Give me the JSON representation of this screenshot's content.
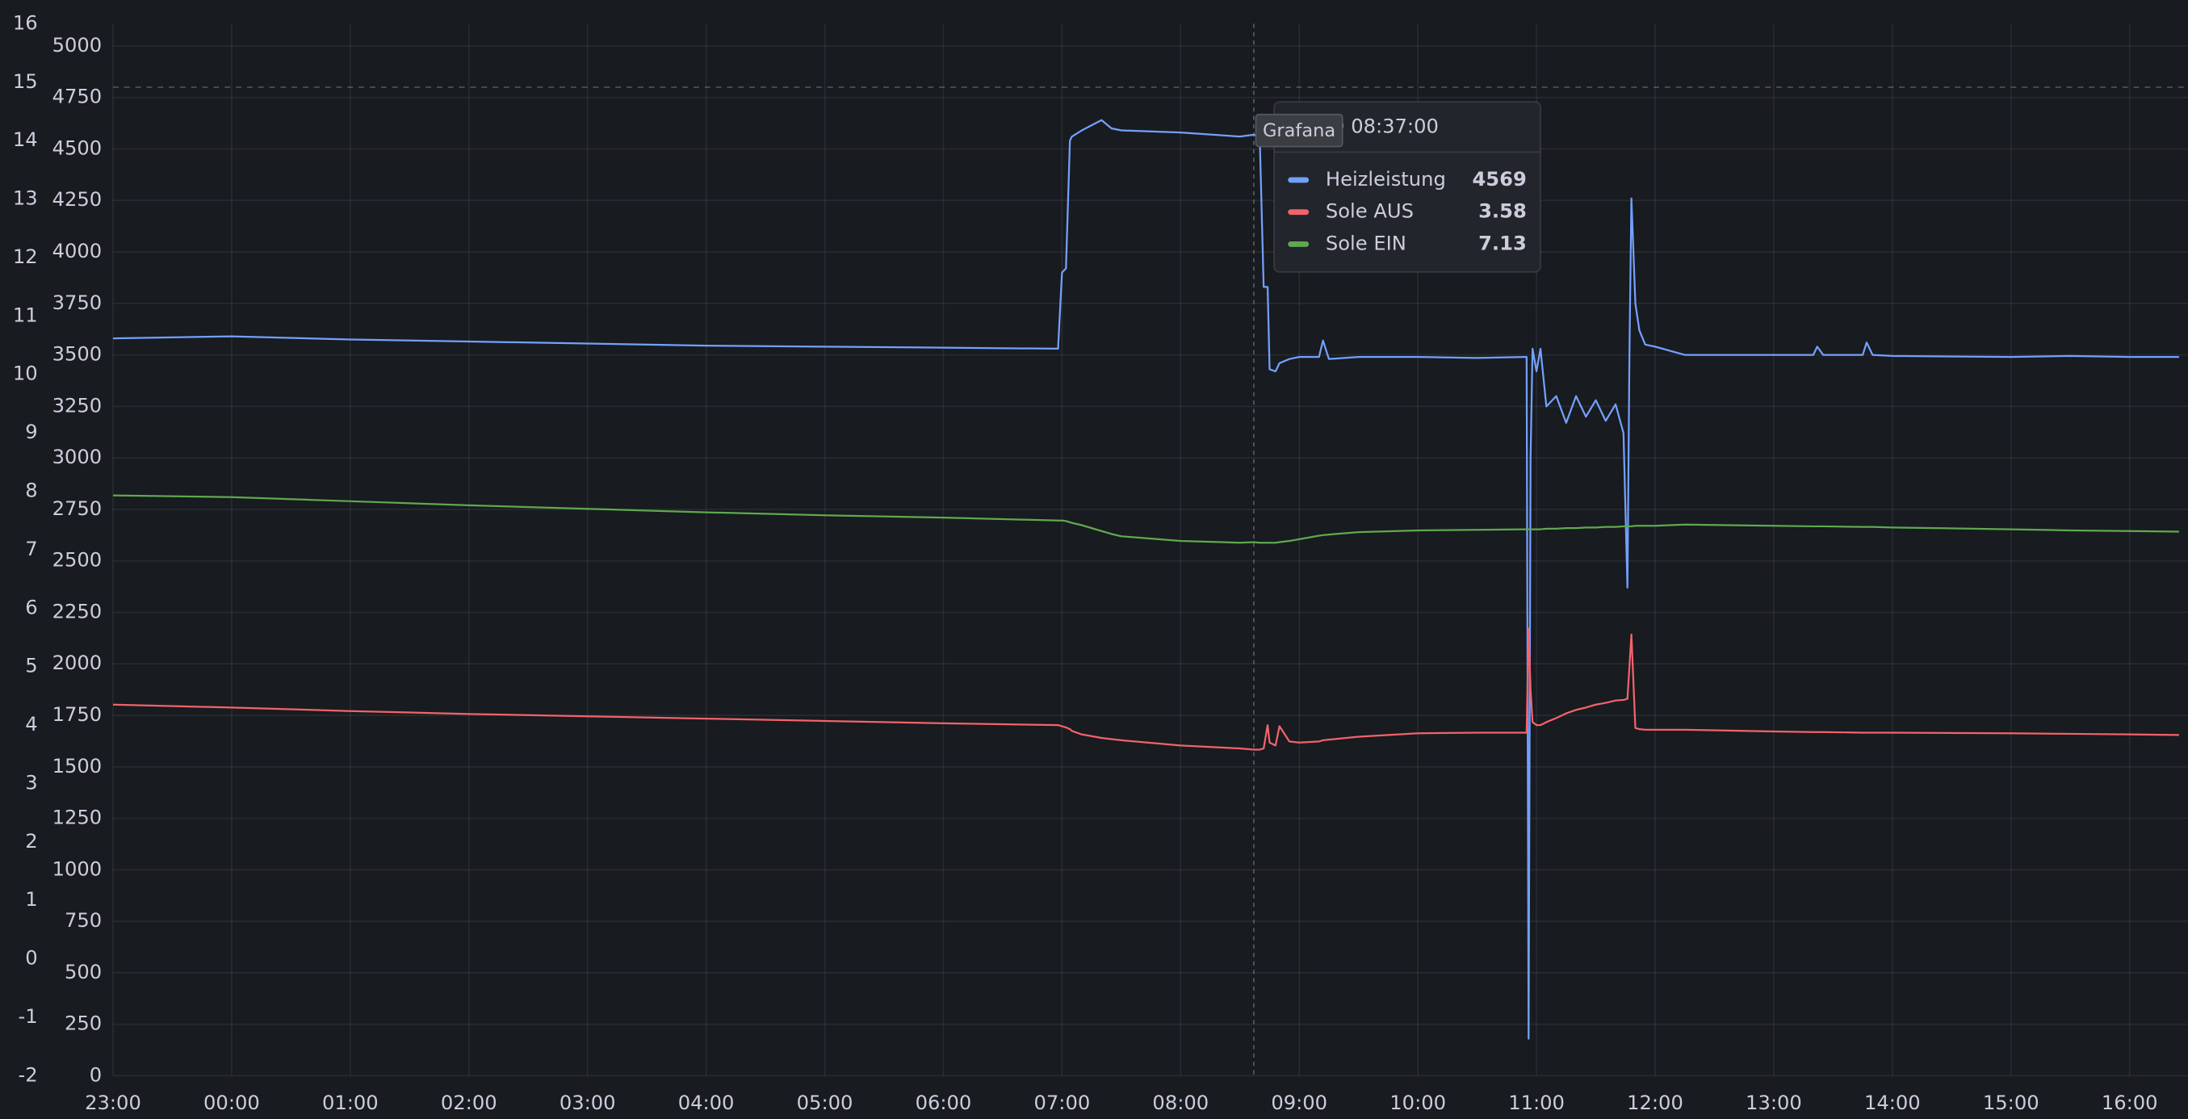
{
  "chart_data": {
    "type": "line",
    "x": [
      "23:00",
      "00:00",
      "01:00",
      "02:00",
      "03:00",
      "04:00",
      "05:00",
      "06:00",
      "06:58",
      "07:00",
      "07:02",
      "07:04",
      "07:05",
      "07:10",
      "07:20",
      "07:25",
      "07:30",
      "08:00",
      "08:30",
      "08:37",
      "08:40",
      "08:42",
      "08:44",
      "08:45",
      "08:48",
      "08:50",
      "08:55",
      "09:00",
      "09:10",
      "09:12",
      "09:15",
      "09:30",
      "10:00",
      "10:30",
      "10:54",
      "10:55",
      "10:56",
      "10:57",
      "10:58",
      "11:00",
      "11:02",
      "11:05",
      "11:10",
      "11:15",
      "11:20",
      "11:25",
      "11:30",
      "11:35",
      "11:40",
      "11:44",
      "11:46",
      "11:47",
      "11:48",
      "11:50",
      "11:52",
      "11:55",
      "12:00",
      "12:15",
      "13:00",
      "13:20",
      "13:22",
      "13:25",
      "13:45",
      "13:47",
      "13:50",
      "14:00",
      "15:00",
      "15:30",
      "16:00",
      "16:25"
    ],
    "series": [
      {
        "name": "Heizleistung",
        "color": "#73a0ff",
        "axis": "y2",
        "values": [
          3580,
          3590,
          3575,
          3565,
          3555,
          3545,
          3540,
          3535,
          3530,
          3900,
          3920,
          4540,
          4560,
          4590,
          4640,
          4600,
          4590,
          4580,
          4560,
          4569,
          4560,
          3830,
          3830,
          3430,
          3420,
          3460,
          3480,
          3490,
          3490,
          3570,
          3480,
          3490,
          3490,
          3485,
          3490,
          3490,
          180,
          3000,
          3530,
          3420,
          3530,
          3250,
          3300,
          3170,
          3300,
          3200,
          3280,
          3180,
          3260,
          3120,
          2370,
          3500,
          4260,
          3750,
          3620,
          3550,
          3540,
          3500,
          3500,
          3500,
          3540,
          3500,
          3500,
          3560,
          3500,
          3495,
          3490,
          3495,
          3490,
          3490
        ]
      },
      {
        "name": "Sole AUS",
        "color": "#f2636b",
        "values": [
          4.35,
          4.3,
          4.24,
          4.19,
          4.15,
          4.11,
          4.07,
          4.03,
          4.0,
          3.98,
          3.96,
          3.93,
          3.9,
          3.84,
          3.78,
          3.76,
          3.74,
          3.65,
          3.6,
          3.58,
          3.58,
          3.6,
          4.0,
          3.7,
          3.65,
          3.98,
          3.72,
          3.7,
          3.72,
          3.74,
          3.75,
          3.8,
          3.86,
          3.87,
          3.87,
          3.87,
          5.65,
          4.6,
          4.05,
          4.0,
          4.0,
          4.05,
          4.12,
          4.2,
          4.26,
          4.3,
          4.35,
          4.38,
          4.42,
          4.43,
          4.45,
          5.0,
          5.55,
          3.95,
          3.93,
          3.92,
          3.92,
          3.92,
          3.89,
          3.88,
          3.88,
          3.88,
          3.87,
          3.87,
          3.87,
          3.87,
          3.86,
          3.85,
          3.84,
          3.83
        ]
      },
      {
        "name": "Sole EIN",
        "color": "#5ea94f",
        "values": [
          7.93,
          7.9,
          7.83,
          7.76,
          7.7,
          7.64,
          7.59,
          7.55,
          7.5,
          7.5,
          7.49,
          7.47,
          7.46,
          7.42,
          7.32,
          7.27,
          7.23,
          7.15,
          7.12,
          7.13,
          7.12,
          7.12,
          7.12,
          7.12,
          7.12,
          7.13,
          7.15,
          7.18,
          7.24,
          7.25,
          7.26,
          7.3,
          7.33,
          7.34,
          7.35,
          7.35,
          7.35,
          7.35,
          7.35,
          7.35,
          7.35,
          7.36,
          7.36,
          7.37,
          7.37,
          7.38,
          7.38,
          7.39,
          7.39,
          7.4,
          7.4,
          7.4,
          7.4,
          7.41,
          7.41,
          7.41,
          7.41,
          7.43,
          7.41,
          7.4,
          7.4,
          7.4,
          7.39,
          7.39,
          7.39,
          7.38,
          7.35,
          7.33,
          7.32,
          7.31
        ]
      }
    ],
    "xlim": [
      "23:00",
      "16:26"
    ],
    "xticks": [
      "23:00",
      "00:00",
      "01:00",
      "02:00",
      "03:00",
      "04:00",
      "05:00",
      "06:00",
      "07:00",
      "08:00",
      "09:00",
      "10:00",
      "11:00",
      "12:00",
      "13:00",
      "14:00",
      "15:00",
      "16:00"
    ],
    "ylim": [
      -2,
      16
    ],
    "yticks": [
      -2,
      -1,
      0,
      1,
      2,
      3,
      4,
      5,
      6,
      7,
      8,
      9,
      10,
      11,
      12,
      13,
      14,
      15,
      16
    ],
    "y2lim": [
      0,
      5108
    ],
    "y2ticks": [
      0,
      250,
      500,
      750,
      1000,
      1250,
      1500,
      1750,
      2000,
      2250,
      2500,
      2750,
      3000,
      3250,
      3500,
      3750,
      4000,
      4250,
      4500,
      4750,
      5000
    ],
    "threshold": 4800,
    "grid": true,
    "tooltip": {
      "time": "04-10 08:37:00",
      "badge": "Grafana"
    }
  }
}
